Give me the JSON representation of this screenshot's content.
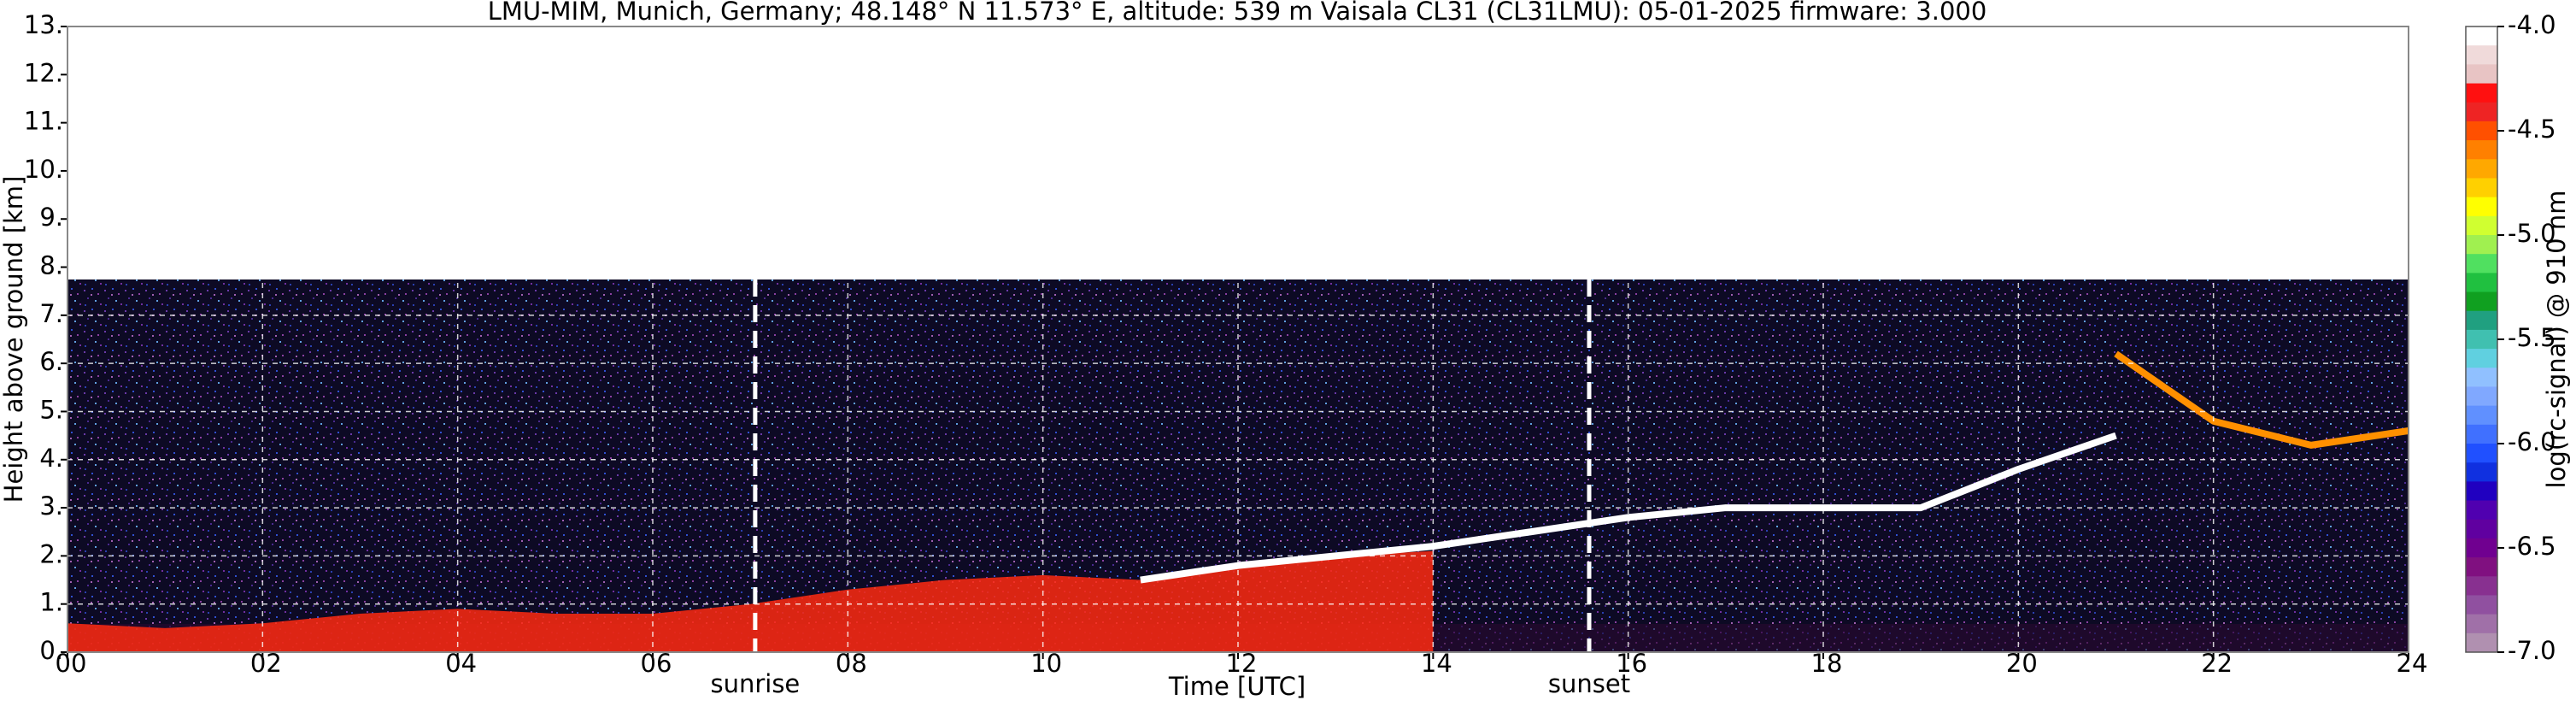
{
  "chart_data": {
    "type": "ceilometer",
    "title": "LMU-MIM, Munich, Germany; 48.148° N 11.573° E, altitude: 539 m    Vaisala CL31 (CL31LMU): 05-01-2025    firmware: 3.000",
    "xlabel": "Time [UTC]",
    "ylabel": "Height above ground [km]",
    "xlim": [
      0,
      24
    ],
    "xticks": [
      {
        "value": 0,
        "label": "00"
      },
      {
        "value": 2,
        "label": "02"
      },
      {
        "value": 4,
        "label": "04"
      },
      {
        "value": 6,
        "label": "06"
      },
      {
        "value": 8,
        "label": "08"
      },
      {
        "value": 10,
        "label": "10"
      },
      {
        "value": 12,
        "label": "12"
      },
      {
        "value": 14,
        "label": "14"
      },
      {
        "value": 16,
        "label": "16"
      },
      {
        "value": 18,
        "label": "18"
      },
      {
        "value": 20,
        "label": "20"
      },
      {
        "value": 22,
        "label": "22"
      },
      {
        "value": 24,
        "label": "24"
      }
    ],
    "ylim": [
      0,
      13
    ],
    "yticks": [
      {
        "value": 0,
        "label": "0."
      },
      {
        "value": 1,
        "label": "1."
      },
      {
        "value": 2,
        "label": "2."
      },
      {
        "value": 3,
        "label": "3."
      },
      {
        "value": 4,
        "label": "4."
      },
      {
        "value": 5,
        "label": "5."
      },
      {
        "value": 6,
        "label": "6."
      },
      {
        "value": 7,
        "label": "7."
      },
      {
        "value": 8,
        "label": "8."
      },
      {
        "value": 9,
        "label": "9."
      },
      {
        "value": 10,
        "label": "10."
      },
      {
        "value": 11,
        "label": "11."
      },
      {
        "value": 12,
        "label": "12."
      },
      {
        "value": 13,
        "label": "13."
      }
    ],
    "grid": true,
    "annotations": [
      {
        "x": 7.05,
        "label": "sunrise"
      },
      {
        "x": 15.6,
        "label": "sunset"
      }
    ],
    "x": [
      0,
      1,
      2,
      3,
      4,
      5,
      6,
      7,
      8,
      9,
      10,
      11,
      12,
      13,
      14,
      15,
      16,
      17,
      18,
      19,
      20,
      21,
      22,
      23,
      24
    ],
    "series": [
      {
        "kind": "area",
        "color": "#ff2a10",
        "values": [
          0.6,
          0.5,
          0.6,
          0.8,
          0.9,
          0.8,
          0.8,
          1.0,
          1.3,
          1.5,
          1.6,
          1.5,
          1.8,
          2.0,
          2.1,
          null,
          null,
          null,
          null,
          null,
          null,
          null,
          null,
          null,
          null
        ]
      },
      {
        "kind": "line",
        "color": "#ffffff",
        "values": [
          null,
          null,
          null,
          null,
          null,
          null,
          null,
          null,
          null,
          null,
          null,
          1.5,
          1.8,
          2.0,
          2.2,
          2.5,
          2.8,
          3.0,
          3.0,
          3.0,
          3.8,
          4.5,
          null,
          null,
          null
        ]
      },
      {
        "kind": "line",
        "color": "#ff9000",
        "values": [
          null,
          null,
          null,
          null,
          null,
          null,
          null,
          null,
          null,
          null,
          null,
          null,
          null,
          null,
          null,
          null,
          null,
          null,
          null,
          null,
          null,
          6.2,
          4.8,
          4.3,
          4.6
        ]
      }
    ],
    "colorbar": {
      "label": "log(rc-signal) @ 910 nm",
      "lim": [
        -7,
        -4
      ],
      "ticks": [
        {
          "value": -4,
          "label": "-4.0"
        },
        -4.5,
        {
          "value": -5,
          "label": "-5.0"
        },
        -5.5,
        {
          "value": -6,
          "label": "-6.0"
        },
        -6.5,
        {
          "value": -7,
          "label": "-7.0"
        }
      ],
      "colors": [
        "#ffffff",
        "#f0dada",
        "#e8c4c4",
        "#ff1010",
        "#ee2424",
        "#ff5000",
        "#ff8000",
        "#ffa800",
        "#ffd000",
        "#ffff00",
        "#d0ff30",
        "#a0f050",
        "#50e060",
        "#20c040",
        "#10a020",
        "#20a080",
        "#40c0b0",
        "#60d0e0",
        "#90c0ff",
        "#80a8ff",
        "#6090ff",
        "#4070ff",
        "#2050ff",
        "#1030e0",
        "#2000c0",
        "#5000b0",
        "#6000a0",
        "#700090",
        "#801080",
        "#883090",
        "#9050a0",
        "#a070a8",
        "#b090b0"
      ]
    }
  }
}
